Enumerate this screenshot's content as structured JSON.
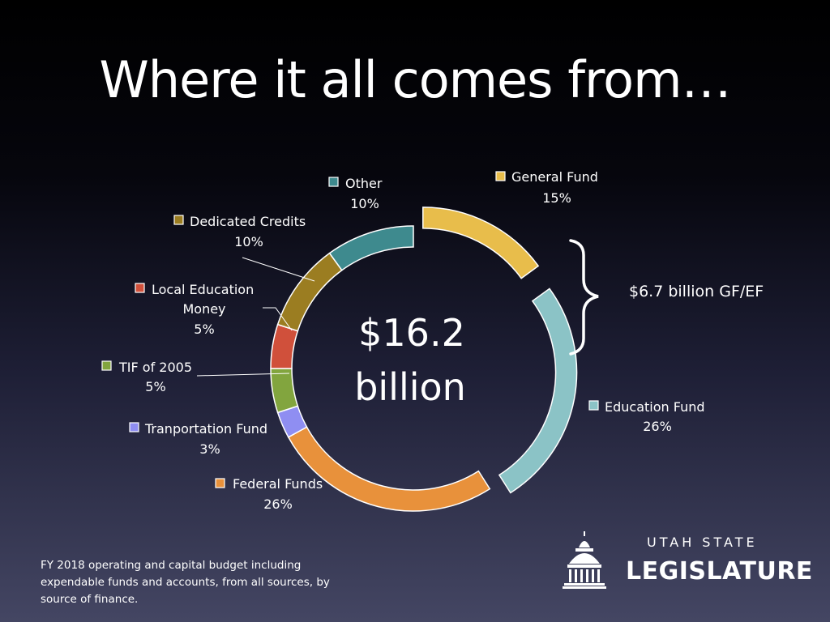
{
  "title": "Where it all comes from…",
  "center": {
    "line1": "$16.2",
    "line2": "billion"
  },
  "bracket_label": "$6.7 billion GF/EF",
  "footnote": "FY 2018 operating and capital budget including expendable funds and accounts, from all sources, by source of finance.",
  "logo": {
    "top": "UTAH STATE",
    "bottom": "LEGISLATURE"
  },
  "chart_data": {
    "type": "pie",
    "variant": "donut",
    "start": "12 o'clock",
    "direction": "clockwise",
    "slices": [
      {
        "name": "General Fund",
        "value": 15,
        "label": "15%",
        "color": "#e8bd4b",
        "exploded": true
      },
      {
        "name": "Education Fund",
        "value": 26,
        "label": "26%",
        "color": "#8bc3c6",
        "exploded": true
      },
      {
        "name": "Federal Funds",
        "value": 26,
        "label": "26%",
        "color": "#e8913b",
        "exploded": false
      },
      {
        "name": "Tranportation Fund",
        "value": 3,
        "label": "3%",
        "color": "#8f8ef2",
        "exploded": false
      },
      {
        "name": "TIF of 2005",
        "value": 5,
        "label": "5%",
        "color": "#82a53e",
        "exploded": false
      },
      {
        "name": "Local Education Money",
        "value": 5,
        "label": "5%",
        "color": "#d0503b",
        "exploded": false
      },
      {
        "name": "Dedicated Credits",
        "value": 10,
        "label": "10%",
        "color": "#9b7d21",
        "exploded": false
      },
      {
        "name": "Other",
        "value": 10,
        "label": "10%",
        "color": "#3e8a8e",
        "exploded": false
      }
    ]
  }
}
